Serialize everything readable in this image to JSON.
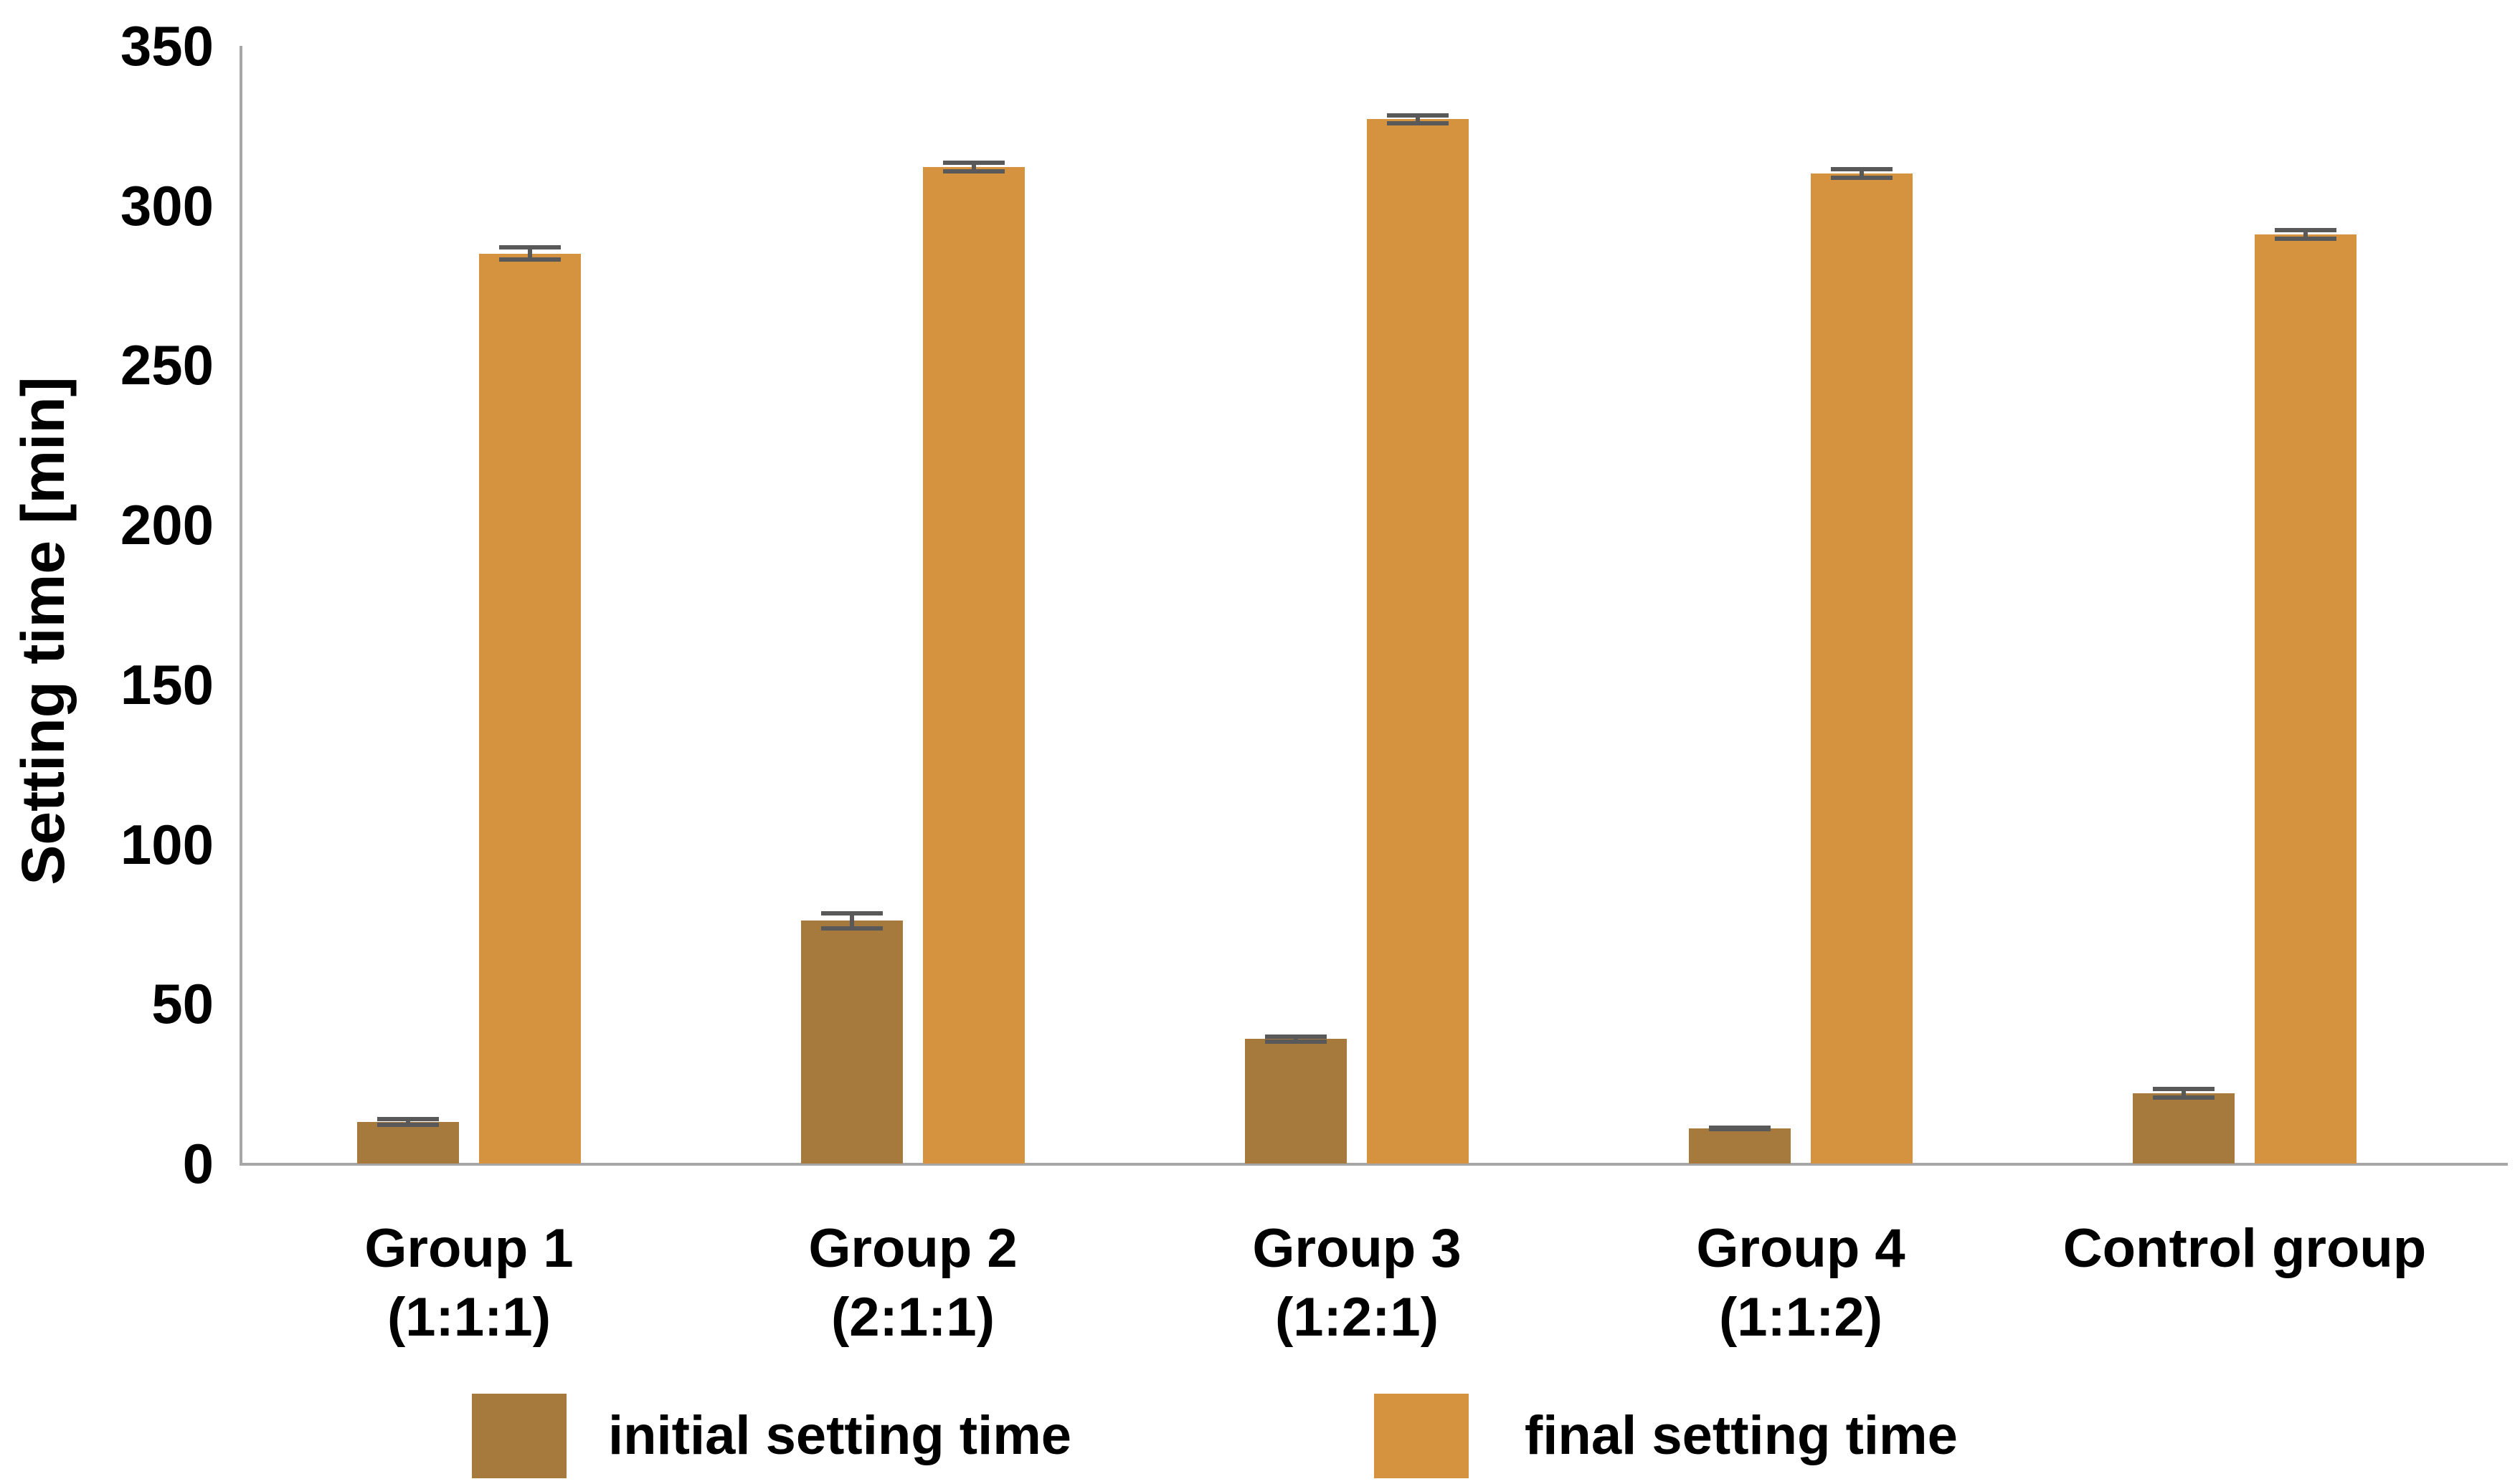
{
  "chart_data": {
    "type": "bar",
    "title": "",
    "ylabel": "Setting time [min]",
    "xlabel": "",
    "ylim": [
      0,
      350
    ],
    "yticks": [
      0,
      50,
      100,
      150,
      200,
      250,
      300,
      350
    ],
    "grid": false,
    "legend_position": "bottom",
    "axis_color": "#a6a6a6",
    "error_bar_color": "#595959",
    "categories": [
      {
        "line1": "Group 1",
        "line2": "(1:1:1)"
      },
      {
        "line1": "Group 2",
        "line2": "(2:1:1)"
      },
      {
        "line1": "Group 3",
        "line2": "(1:2:1)"
      },
      {
        "line1": "Group 4",
        "line2": "(1:1:2)"
      },
      {
        "line1": "Control group",
        "line2": ""
      }
    ],
    "series": [
      {
        "name": "initial setting time",
        "color": "#a6793d",
        "values": [
          13,
          76,
          39,
          11,
          22
        ],
        "errors": [
          1.5,
          3,
          1.5,
          1,
          2
        ]
      },
      {
        "name": "final setting time",
        "color": "#d6933f",
        "values": [
          285,
          312,
          327,
          310,
          291
        ],
        "errors": [
          2.5,
          2,
          2,
          2,
          2
        ]
      }
    ]
  }
}
